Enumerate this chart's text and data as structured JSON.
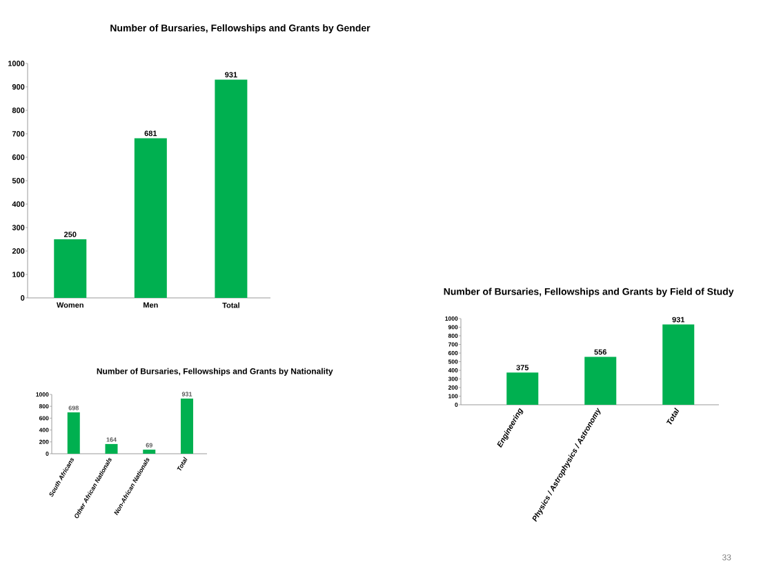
{
  "chart_data": [
    {
      "type": "bar",
      "title": "Number of Bursaries, Fellowships and Grants by Gender",
      "categories": [
        "Women",
        "Men",
        "Total"
      ],
      "values": [
        250,
        681,
        931
      ],
      "color": "#00b050",
      "ylim": [
        0,
        1000
      ],
      "yticks": [
        0,
        100,
        200,
        300,
        400,
        500,
        600,
        700,
        800,
        900,
        1000
      ],
      "data_labels": true
    },
    {
      "type": "bar",
      "title": "Number of Bursaries, Fellowships and Grants by Field of Study",
      "categories": [
        "Engineering",
        "Physics / Astrophysics / Astronomy",
        "Total"
      ],
      "values": [
        375,
        556,
        931
      ],
      "color": "#00b050",
      "ylim": [
        0,
        1000
      ],
      "yticks": [
        0,
        100,
        200,
        300,
        400,
        500,
        600,
        700,
        800,
        900,
        1000
      ],
      "data_labels": true,
      "annotations": [
        "33"
      ]
    },
    {
      "type": "bar",
      "title": "Number of Bursaries, Fellowships and Grants by Nationality",
      "categories": [
        "South Africans",
        "Other African Nationals",
        "Non-African Nationals",
        "Total"
      ],
      "values": [
        698,
        164,
        69,
        931
      ],
      "color": "#00b050",
      "ylim": [
        0,
        1000
      ],
      "yticks": [
        0,
        200,
        400,
        600,
        800,
        1000
      ],
      "data_labels": true
    }
  ]
}
